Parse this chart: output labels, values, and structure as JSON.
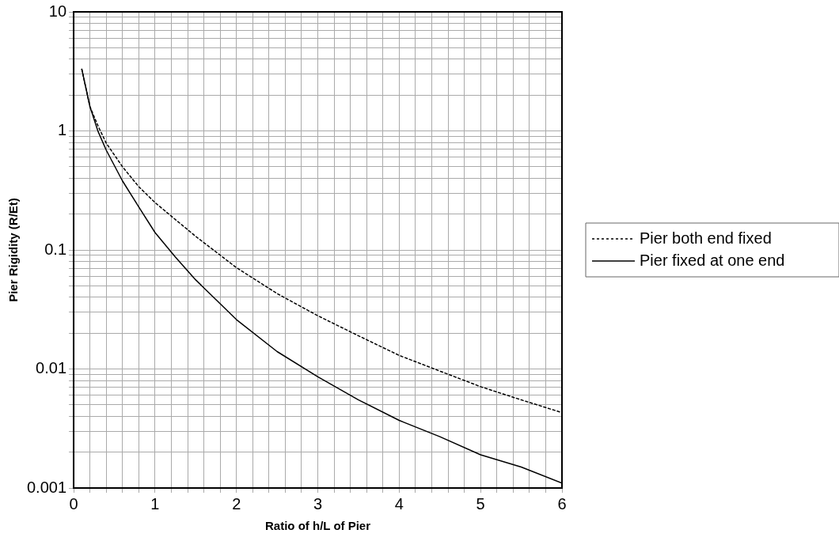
{
  "chart_data": {
    "type": "line",
    "xlabel": "Ratio of h/L of Pier",
    "ylabel": "Pier Rigidity (R/Et)",
    "x": [
      0.1,
      0.2,
      0.3,
      0.4,
      0.6,
      0.8,
      1,
      1.25,
      1.5,
      2,
      2.5,
      3,
      3.5,
      4,
      4.5,
      5,
      5.5,
      6
    ],
    "series": [
      {
        "name": "Pier both end fixed",
        "color": "#000000",
        "line_style": "dotted",
        "values": [
          3.3,
          1.6,
          1.1,
          0.79,
          0.5,
          0.34,
          0.25,
          0.18,
          0.13,
          0.071,
          0.043,
          0.028,
          0.019,
          0.013,
          0.0096,
          0.0071,
          0.0055,
          0.0043
        ]
      },
      {
        "name": "Pier fixed at one end",
        "color": "#000000",
        "line_style": "solid",
        "values": [
          3.3,
          1.6,
          0.99,
          0.69,
          0.38,
          0.23,
          0.14,
          0.087,
          0.056,
          0.026,
          0.014,
          0.0086,
          0.0055,
          0.0037,
          0.0027,
          0.0019,
          0.0015,
          0.0011
        ]
      }
    ],
    "xlim": [
      0,
      6
    ],
    "xticks": [
      0,
      {
        "value": 0.2,
        "label": null
      },
      {
        "value": 0.4,
        "label": null
      },
      {
        "value": 0.6,
        "label": null
      },
      {
        "value": 0.8,
        "label": null
      },
      1,
      {
        "value": 1.2,
        "label": null
      },
      {
        "value": 1.4,
        "label": null
      },
      {
        "value": 1.6,
        "label": null
      },
      {
        "value": 1.8,
        "label": null
      },
      2,
      {
        "value": 2.2,
        "label": null
      },
      {
        "value": 2.4,
        "label": null
      },
      {
        "value": 2.6,
        "label": null
      },
      {
        "value": 2.8,
        "label": null
      },
      3,
      {
        "value": 3.2,
        "label": null
      },
      {
        "value": 3.4,
        "label": null
      },
      {
        "value": 3.6,
        "label": null
      },
      {
        "value": 3.8,
        "label": null
      },
      4,
      {
        "value": 4.2,
        "label": null
      },
      {
        "value": 4.4,
        "label": null
      },
      {
        "value": 4.6,
        "label": null
      },
      {
        "value": 4.8,
        "label": null
      },
      5,
      {
        "value": 5.2,
        "label": null
      },
      {
        "value": 5.4,
        "label": null
      },
      {
        "value": 5.6,
        "label": null
      },
      {
        "value": 5.8,
        "label": null
      },
      6
    ],
    "ylim": [
      0.001,
      10
    ],
    "yticks": [
      0.001,
      {
        "value": 0.002,
        "label": null
      },
      {
        "value": 0.003,
        "label": null
      },
      {
        "value": 0.004,
        "label": null
      },
      {
        "value": 0.005,
        "label": null
      },
      {
        "value": 0.006,
        "label": null
      },
      {
        "value": 0.007,
        "label": null
      },
      {
        "value": 0.008,
        "label": null
      },
      {
        "value": 0.009,
        "label": null
      },
      0.01,
      {
        "value": 0.02,
        "label": null
      },
      {
        "value": 0.03,
        "label": null
      },
      {
        "value": 0.04,
        "label": null
      },
      {
        "value": 0.05,
        "label": null
      },
      {
        "value": 0.06,
        "label": null
      },
      {
        "value": 0.07,
        "label": null
      },
      {
        "value": 0.08,
        "label": null
      },
      {
        "value": 0.09,
        "label": null
      },
      0.1,
      {
        "value": 0.2,
        "label": null
      },
      {
        "value": 0.3,
        "label": null
      },
      {
        "value": 0.4,
        "label": null
      },
      {
        "value": 0.5,
        "label": null
      },
      {
        "value": 0.6,
        "label": null
      },
      {
        "value": 0.7,
        "label": null
      },
      {
        "value": 0.8,
        "label": null
      },
      {
        "value": 0.9,
        "label": null
      },
      1,
      {
        "value": 2,
        "label": null
      },
      {
        "value": 3,
        "label": null
      },
      {
        "value": 4,
        "label": null
      },
      {
        "value": 5,
        "label": null
      },
      {
        "value": 6,
        "label": null
      },
      {
        "value": 7,
        "label": null
      },
      {
        "value": 8,
        "label": null
      },
      {
        "value": 9,
        "label": null
      },
      10
    ],
    "log": "y",
    "grid": true,
    "legend": "right",
    "marker": "none"
  }
}
